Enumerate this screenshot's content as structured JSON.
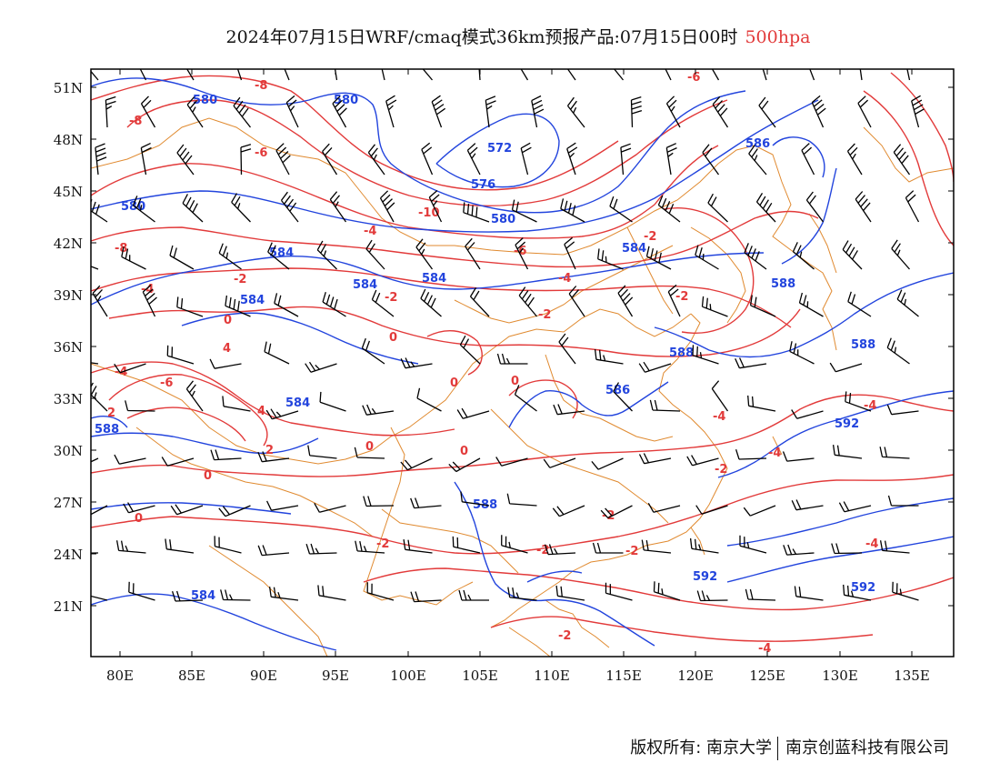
{
  "header": {
    "title": "2024年07月15日WRF/cmaq模式36km预报产品:07月15日00时",
    "level": "500hpa"
  },
  "footer": {
    "copyright": "版权所有: 南京大学",
    "company": "南京创蓝科技有限公司"
  },
  "axes": {
    "lon_labels": [
      "80E",
      "85E",
      "90E",
      "95E",
      "100E",
      "105E",
      "110E",
      "115E",
      "120E",
      "125E",
      "130E",
      "135E"
    ],
    "lat_labels": [
      "51N",
      "48N",
      "45N",
      "42N",
      "39N",
      "36N",
      "33N",
      "30N",
      "27N",
      "24N",
      "21N"
    ]
  },
  "colors": {
    "height_contour": "#2244dd",
    "temperature_contour": "#e23a3a",
    "boundary": "#e08a30",
    "wind_barb": "#000000"
  },
  "geopotential_labels": [
    "580",
    "580",
    "572",
    "576",
    "580",
    "580",
    "586",
    "584",
    "584",
    "584",
    "584",
    "588",
    "584",
    "588",
    "588",
    "586",
    "584",
    "588",
    "592",
    "592",
    "592",
    "584",
    "588"
  ],
  "temperature_labels": [
    "-8",
    "-8",
    "-6",
    "-6",
    "-10",
    "-8",
    "-6",
    "-4",
    "-4",
    "-2",
    "-2",
    "-4",
    "-2",
    "-2",
    "-2",
    "0",
    "0",
    "0",
    "0",
    "0",
    "0",
    "-4",
    "-6",
    "2",
    "4",
    "4",
    "2",
    "0",
    "-2",
    "-2",
    "-2",
    "-2",
    "-2",
    "-4",
    "-4",
    "-4",
    "-4",
    "-4",
    "-2",
    "0"
  ]
}
